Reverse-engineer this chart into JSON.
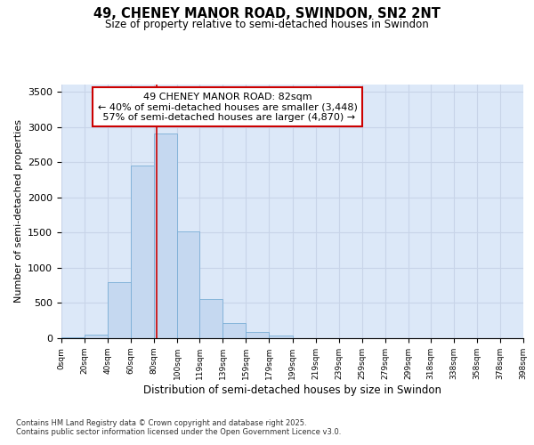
{
  "title_line1": "49, CHENEY MANOR ROAD, SWINDON, SN2 2NT",
  "title_line2": "Size of property relative to semi-detached houses in Swindon",
  "xlabel": "Distribution of semi-detached houses by size in Swindon",
  "ylabel": "Number of semi-detached properties",
  "bin_edges": [
    0,
    20,
    40,
    60,
    80,
    100,
    119,
    139,
    159,
    179,
    199,
    219,
    239,
    259,
    279,
    299,
    318,
    338,
    358,
    378,
    398
  ],
  "bar_heights": [
    10,
    55,
    800,
    2450,
    2900,
    1520,
    550,
    210,
    90,
    40,
    5,
    5,
    3,
    3,
    3,
    2,
    2,
    2,
    2,
    2
  ],
  "bar_color": "#c5d8f0",
  "bar_edgecolor": "#7aaed6",
  "property_size": 82,
  "property_label": "49 CHENEY MANOR ROAD: 82sqm",
  "pct_smaller": 40,
  "count_smaller": 3448,
  "pct_larger": 57,
  "count_larger": 4870,
  "redline_color": "#cc0000",
  "annotation_box_edgecolor": "#cc0000",
  "annotation_box_facecolor": "#ffffff",
  "annotation_fontsize": 8,
  "grid_color": "#c8d4e8",
  "bg_color": "#dce8f8",
  "footer_text": "Contains HM Land Registry data © Crown copyright and database right 2025.\nContains public sector information licensed under the Open Government Licence v3.0.",
  "ylim": [
    0,
    3600
  ],
  "yticks": [
    0,
    500,
    1000,
    1500,
    2000,
    2500,
    3000,
    3500
  ],
  "tick_labels": [
    "0sqm",
    "20sqm",
    "40sqm",
    "60sqm",
    "80sqm",
    "100sqm",
    "119sqm",
    "139sqm",
    "159sqm",
    "179sqm",
    "199sqm",
    "219sqm",
    "239sqm",
    "259sqm",
    "279sqm",
    "299sqm",
    "318sqm",
    "338sqm",
    "358sqm",
    "378sqm",
    "398sqm"
  ]
}
